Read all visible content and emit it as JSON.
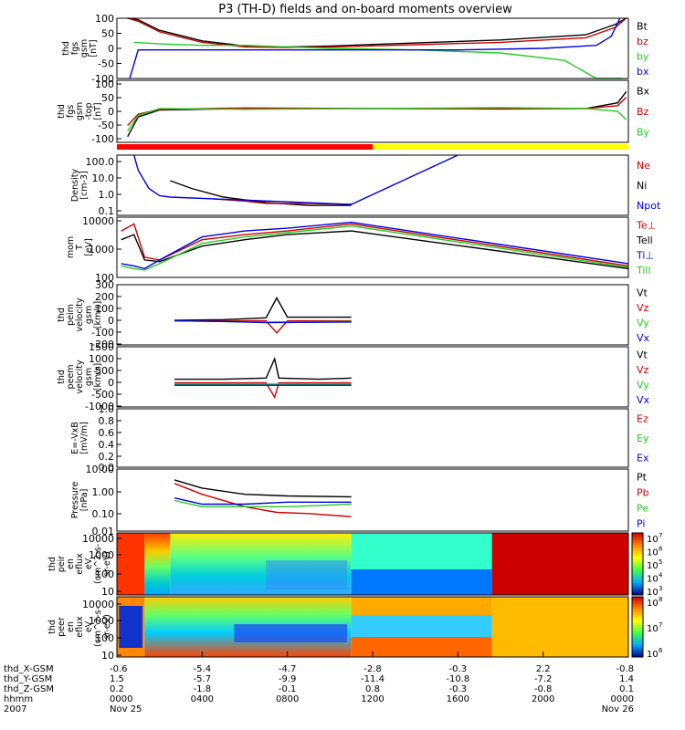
{
  "title": "P3 (TH-D) fields and on-board moments overview",
  "colors": {
    "black": "#000000",
    "red": "#cc0000",
    "green": "#22cc22",
    "blue": "#0000dd",
    "ephem_red": "#ff0000",
    "ephem_yellow": "#ffff00"
  },
  "chart_data": {
    "type": "line",
    "x_unit": "hhmm",
    "time_range_hours": [
      0,
      24
    ],
    "panels": [
      {
        "id": "fgs",
        "ylabel": [
          "thd",
          "fgs",
          "gsm",
          "[nT]"
        ],
        "ylim": [
          -100,
          100
        ],
        "yticks": [
          "100",
          "50",
          "0",
          "-50",
          "-100"
        ],
        "legend": [
          {
            "name": "Bt",
            "color": "black"
          },
          {
            "name": "bz",
            "color": "red"
          },
          {
            "name": "by",
            "color": "green"
          },
          {
            "name": "bx",
            "color": "blue"
          }
        ],
        "series": [
          {
            "name": "Bt",
            "color": "black",
            "x": [
              0.5,
              1.0,
              2.0,
              4.0,
              6.0,
              8.0,
              10.0,
              14.0,
              18.0,
              22.0,
              23.4,
              23.9
            ],
            "y": [
              100,
              95,
              60,
              25,
              8,
              5,
              8,
              18,
              28,
              45,
              80,
              100
            ]
          },
          {
            "name": "bz",
            "color": "red",
            "x": [
              0.5,
              1.0,
              2.0,
              4.0,
              6.0,
              8.0,
              10.0,
              14.0,
              18.0,
              22.0,
              23.4,
              23.9
            ],
            "y": [
              100,
              90,
              55,
              20,
              5,
              3,
              5,
              12,
              20,
              35,
              70,
              100
            ]
          },
          {
            "name": "by",
            "color": "green",
            "x": [
              0.8,
              2.0,
              4.0,
              6.0,
              8.0,
              10.0,
              14.0,
              18.0,
              21.0,
              22.5,
              23.7
            ],
            "y": [
              20,
              15,
              10,
              10,
              5,
              0,
              -5,
              -15,
              -40,
              -100,
              -100
            ]
          },
          {
            "name": "bx",
            "color": "blue",
            "x": [
              0.6,
              1.0,
              2.0,
              4.0,
              8.0,
              12.0,
              16.0,
              20.0,
              22.5,
              23.2,
              23.6
            ],
            "y": [
              -100,
              -5,
              -5,
              -5,
              -5,
              -5,
              -5,
              0,
              10,
              40,
              100
            ]
          }
        ]
      },
      {
        "id": "fgs_raw",
        "ylabel": [
          "thd",
          "fgs",
          "gsm",
          "-top",
          "[nT]"
        ],
        "ylim": [
          -120,
          100
        ],
        "yticks": [
          "100",
          "50",
          "0",
          "-50",
          "-100"
        ],
        "legend": [
          {
            "name": "Bx",
            "color": "black"
          },
          {
            "name": "Bz",
            "color": "red"
          },
          {
            "name": "By",
            "color": "green"
          }
        ],
        "series": [
          {
            "name": "Bx",
            "color": "black",
            "x": [
              0.5,
              1.0,
              2.0,
              6.0,
              12.0,
              18.0,
              22.0,
              23.5,
              23.9
            ],
            "y": [
              -100,
              -30,
              -5,
              0,
              0,
              0,
              0,
              20,
              60
            ]
          },
          {
            "name": "Bz",
            "color": "red",
            "x": [
              0.5,
              1.0,
              2.0,
              6.0,
              12.0,
              18.0,
              22.0,
              23.5,
              23.9
            ],
            "y": [
              -60,
              -20,
              -3,
              2,
              0,
              -2,
              0,
              10,
              40
            ]
          },
          {
            "name": "By",
            "color": "green",
            "x": [
              0.5,
              1.0,
              2.0,
              6.0,
              12.0,
              18.0,
              22.0,
              23.5,
              23.9
            ],
            "y": [
              -80,
              -25,
              0,
              -3,
              0,
              3,
              0,
              -10,
              -40
            ]
          }
        ]
      },
      {
        "id": "density",
        "ylabel": [
          "Density",
          "[cm-3]"
        ],
        "ylog": true,
        "ylim": [
          0.1,
          200
        ],
        "yticks": [
          "100.0",
          "10.0",
          "1.0",
          "0.1"
        ],
        "legend": [
          {
            "name": "Ne",
            "color": "red"
          },
          {
            "name": "Ni",
            "color": "black"
          },
          {
            "name": "Npot",
            "color": "blue"
          }
        ],
        "series": [
          {
            "name": "Ni",
            "color": "black",
            "x": [
              2.5,
              3.5,
              5.0,
              7.0,
              9.0,
              11.0
            ],
            "y": [
              8,
              3,
              1.0,
              0.5,
              0.35,
              0.35
            ]
          },
          {
            "name": "Ne",
            "color": "red",
            "x": [
              4.5,
              6.0,
              7.0,
              9.0,
              11.0
            ],
            "y": [
              0.8,
              0.6,
              0.45,
              0.45,
              0.4
            ]
          },
          {
            "name": "Npot",
            "color": "blue",
            "x": [
              0.8,
              1.0,
              1.5,
              2.0,
              2.5,
              11.0,
              16.0
            ],
            "y": [
              200,
              30,
              3,
              1.2,
              1.0,
              0.4,
              200
            ]
          }
        ]
      },
      {
        "id": "temperature",
        "ylabel": [
          "mom",
          "T",
          "[eV]"
        ],
        "ylog": true,
        "ylim": [
          100,
          12000
        ],
        "yticks": [
          "10000",
          "1000",
          "100"
        ],
        "legend": [
          {
            "name": "Te⊥",
            "color": "red"
          },
          {
            "name": "Tell",
            "color": "black"
          },
          {
            "name": "Ti⊥",
            "color": "blue"
          },
          {
            "name": "Till",
            "color": "green"
          }
        ],
        "series": [
          {
            "name": "Te⊥",
            "color": "red",
            "x": [
              0.2,
              0.8,
              1.3,
              2.0,
              4.0,
              6.0,
              8.0,
              11.0,
              24.0
            ],
            "y": [
              4000,
              7000,
              500,
              400,
              2000,
              3000,
              4000,
              7000,
              250
            ]
          },
          {
            "name": "Tell",
            "color": "black",
            "x": [
              0.2,
              0.8,
              1.3,
              2.0,
              4.0,
              6.0,
              8.0,
              11.0,
              24.0
            ],
            "y": [
              2000,
              3000,
              400,
              350,
              1200,
              2000,
              3000,
              4000,
              200
            ]
          },
          {
            "name": "Ti⊥",
            "color": "blue",
            "x": [
              0.2,
              0.8,
              1.3,
              2.0,
              4.0,
              6.0,
              8.0,
              11.0,
              24.0
            ],
            "y": [
              300,
              250,
              200,
              400,
              2500,
              4000,
              5000,
              8000,
              300
            ]
          },
          {
            "name": "Till",
            "color": "green",
            "x": [
              0.2,
              0.8,
              1.3,
              2.0,
              4.0,
              6.0,
              8.0,
              11.0,
              24.0
            ],
            "y": [
              250,
              200,
              180,
              300,
              1500,
              2500,
              3500,
              6000,
              220
            ]
          }
        ]
      },
      {
        "id": "peim_velocity",
        "ylabel": [
          "thd",
          "peim",
          "velocity",
          "gsm",
          "[km/s]"
        ],
        "ylim": [
          -200,
          300
        ],
        "yticks": [
          "300",
          "200",
          "100",
          "0",
          "-100",
          "-200"
        ],
        "legend": [
          {
            "name": "Vt",
            "color": "black"
          },
          {
            "name": "Vz",
            "color": "red"
          },
          {
            "name": "Vy",
            "color": "green"
          },
          {
            "name": "Vx",
            "color": "blue"
          }
        ],
        "series": [
          {
            "name": "Vt",
            "color": "black",
            "x": [
              2.7,
              5.0,
              7.0,
              7.5,
              8.0,
              11.0
            ],
            "y": [
              5,
              10,
              25,
              190,
              30,
              30
            ]
          },
          {
            "name": "Vz",
            "color": "red",
            "x": [
              2.7,
              5.0,
              7.0,
              7.5,
              8.0,
              11.0
            ],
            "y": [
              0,
              0,
              0,
              -100,
              0,
              0
            ]
          },
          {
            "name": "Vy",
            "color": "green",
            "x": [
              2.7,
              5.0,
              7.0,
              11.0
            ],
            "y": [
              0,
              -5,
              -10,
              -5
            ]
          },
          {
            "name": "Vx",
            "color": "blue",
            "x": [
              2.7,
              5.0,
              7.0,
              11.0
            ],
            "y": [
              0,
              -5,
              -15,
              -10
            ]
          }
        ]
      },
      {
        "id": "peem_velocity",
        "ylabel": [
          "thd",
          "peem",
          "velocity",
          "gsm",
          "[km/s]"
        ],
        "ylim": [
          -1000,
          1500
        ],
        "yticks": [
          "1500",
          "1000",
          "500",
          "0",
          "-500",
          "-1000"
        ],
        "legend": [
          {
            "name": "Vt",
            "color": "black"
          },
          {
            "name": "Vz",
            "color": "red"
          },
          {
            "name": "Vy",
            "color": "green"
          },
          {
            "name": "Vx",
            "color": "blue"
          }
        ],
        "series": [
          {
            "name": "Vt",
            "color": "black",
            "x": [
              2.7,
              5.0,
              7.0,
              7.4,
              7.6,
              9.5,
              11.0
            ],
            "y": [
              150,
              150,
              200,
              1000,
              200,
              150,
              200
            ]
          },
          {
            "name": "Vz",
            "color": "red",
            "x": [
              2.7,
              5.0,
              7.0,
              7.4,
              7.6,
              11.0
            ],
            "y": [
              0,
              0,
              0,
              -600,
              0,
              0
            ]
          },
          {
            "name": "Vy",
            "color": "green",
            "x": [
              2.7,
              5.0,
              11.0
            ],
            "y": [
              -50,
              -50,
              -50
            ]
          },
          {
            "name": "Vx",
            "color": "blue",
            "x": [
              2.7,
              5.0,
              11.0
            ],
            "y": [
              -100,
              -100,
              -100
            ]
          }
        ]
      },
      {
        "id": "e_field",
        "ylabel": [
          "E=-VxB",
          "[mV/m]"
        ],
        "ylim": [
          0,
          1
        ],
        "yticks": [
          "1.0",
          "0.8",
          "0.6",
          "0.4",
          "0.2",
          "0.0"
        ],
        "legend": [
          {
            "name": "Ez",
            "color": "red"
          },
          {
            "name": "Ey",
            "color": "green"
          },
          {
            "name": "Ex",
            "color": "blue"
          }
        ],
        "series": []
      },
      {
        "id": "pressure",
        "ylabel": [
          "Pressure",
          "[nPa]"
        ],
        "ylog": true,
        "ylim": [
          0.01,
          10
        ],
        "yticks": [
          "10.00",
          "1.00",
          "0.10",
          "0.01"
        ],
        "legend": [
          {
            "name": "Pt",
            "color": "black"
          },
          {
            "name": "Pb",
            "color": "red"
          },
          {
            "name": "Pe",
            "color": "green"
          },
          {
            "name": "Pi",
            "color": "blue"
          }
        ],
        "series": [
          {
            "name": "Pt",
            "color": "black",
            "x": [
              2.7,
              4.0,
              6.0,
              8.0,
              11.0
            ],
            "y": [
              3.0,
              1.2,
              0.6,
              0.5,
              0.45
            ]
          },
          {
            "name": "Pb",
            "color": "red",
            "x": [
              2.7,
              4.0,
              6.0,
              7.5,
              9.0,
              11.0
            ],
            "y": [
              2.0,
              0.6,
              0.15,
              0.08,
              0.07,
              0.05
            ]
          },
          {
            "name": "Pe",
            "color": "green",
            "x": [
              2.7,
              4.0,
              6.0,
              8.0,
              11.0
            ],
            "y": [
              0.3,
              0.15,
              0.15,
              0.15,
              0.2
            ]
          },
          {
            "name": "Pi",
            "color": "blue",
            "x": [
              2.7,
              4.0,
              6.0,
              8.0,
              11.0
            ],
            "y": [
              0.4,
              0.2,
              0.2,
              0.25,
              0.25
            ]
          }
        ]
      },
      {
        "id": "peir_spec",
        "type": "heatmap",
        "ylabel": [
          "thd",
          "peir",
          "en",
          "eflux",
          "eV",
          "(cm^2-s-",
          "sr-eV)"
        ],
        "ylog": true,
        "ylim": [
          10,
          20000
        ],
        "yticks": [
          "10000",
          "1000",
          "100",
          "10"
        ],
        "colorbar_ticks": [
          "10",
          "10",
          "10",
          "10",
          "10"
        ],
        "colorbar_exponents": [
          "7",
          "6",
          "5",
          "4",
          "3"
        ]
      },
      {
        "id": "peer_spec",
        "type": "heatmap",
        "ylabel": [
          "thd",
          "peer",
          "en",
          "eflux",
          "eV",
          "(cm^2-s-",
          "sr-eV)"
        ],
        "ylog": true,
        "ylim": [
          10,
          20000
        ],
        "yticks": [
          "10000",
          "1000",
          "100",
          "10"
        ],
        "colorbar_ticks": [
          "10",
          "10",
          "10"
        ],
        "colorbar_exponents": [
          "8",
          "7",
          "6"
        ]
      }
    ]
  },
  "ephemeris": {
    "row_labels": [
      "thd_X-GSM",
      "thd_Y-GSM",
      "thd_Z-GSM",
      "hhmm",
      "2007"
    ],
    "x_gsm": [
      "-0.6",
      "-5.4",
      "-4.7",
      "-2.8",
      "-0.3",
      "2.2",
      "-0.8"
    ],
    "y_gsm": [
      "1.5",
      "-5.7",
      "-9.9",
      "-11.4",
      "-10.8",
      "-7.2",
      "1.4"
    ],
    "z_gsm": [
      "0.2",
      "-1.8",
      "-0.1",
      "0.8",
      "-0.3",
      "-0.8",
      "0.1"
    ],
    "hhmm": [
      "0000",
      "0400",
      "0800",
      "1200",
      "1600",
      "2000",
      "0000"
    ],
    "date_start": "Nov 25",
    "date_end": "Nov 26"
  }
}
